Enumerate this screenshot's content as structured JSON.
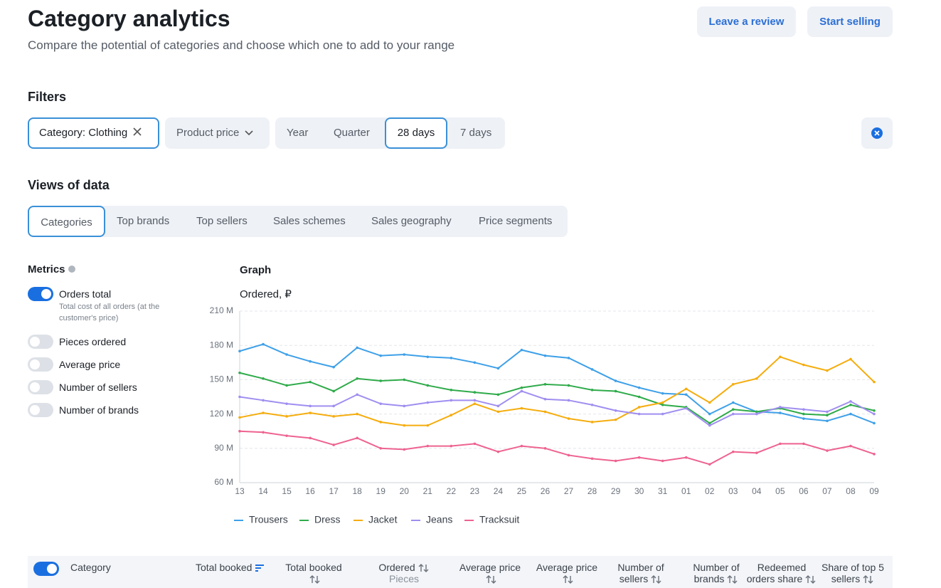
{
  "header": {
    "title": "Category analytics",
    "subtitle": "Compare the potential of categories and choose which one to add to your range",
    "buttons": [
      "Leave a review",
      "Start selling"
    ]
  },
  "filters": {
    "title": "Filters",
    "category": "Category: Clothing",
    "price": "Product price",
    "periods": [
      "Year",
      "Quarter",
      "28 days",
      "7 days"
    ]
  },
  "views": {
    "title": "Views of data",
    "tabs": [
      "Categories",
      "Top brands",
      "Top sellers",
      "Sales schemes",
      "Sales geography",
      "Price segments"
    ]
  },
  "metrics": {
    "title": "Metrics",
    "items": [
      {
        "label": "Orders total",
        "description": "Total cost of all orders (at the customer's price)"
      },
      {
        "label": "Pieces ordered"
      },
      {
        "label": "Average price"
      },
      {
        "label": "Number of sellers"
      },
      {
        "label": "Number of brands"
      }
    ]
  },
  "graph": {
    "title": "Graph"
  },
  "chart_data": {
    "type": "line",
    "y_label": "Ordered, ₽",
    "categories": [
      "13",
      "14",
      "15",
      "16",
      "17",
      "18",
      "19",
      "20",
      "21",
      "22",
      "23",
      "24",
      "25",
      "26",
      "27",
      "28",
      "29",
      "30",
      "31",
      "01",
      "02",
      "03",
      "04",
      "05",
      "06",
      "07",
      "08",
      "09"
    ],
    "series": [
      {
        "name": "Trousers",
        "color": "#3ea0e8",
        "values": [
          175,
          181,
          172,
          166,
          161,
          178,
          171,
          172,
          170,
          169,
          165,
          160,
          176,
          171,
          169,
          159,
          149,
          143,
          138,
          137,
          120,
          130,
          122,
          121,
          116,
          114,
          120,
          112
        ]
      },
      {
        "name": "Dress",
        "color": "#2fab4a",
        "values": [
          156,
          151,
          145,
          148,
          140,
          151,
          149,
          150,
          145,
          141,
          139,
          137,
          143,
          146,
          145,
          141,
          140,
          135,
          128,
          126,
          112,
          124,
          122,
          125,
          120,
          119,
          128,
          123
        ]
      },
      {
        "name": "Jacket",
        "color": "#f5ad0e",
        "values": [
          117,
          121,
          118,
          121,
          118,
          120,
          113,
          110,
          110,
          119,
          129,
          122,
          125,
          122,
          116,
          113,
          115,
          126,
          130,
          142,
          130,
          146,
          151,
          170,
          163,
          158,
          168,
          148
        ]
      },
      {
        "name": "Jeans",
        "color": "#a08ef0",
        "values": [
          135,
          132,
          129,
          127,
          127,
          137,
          129,
          127,
          130,
          132,
          132,
          127,
          140,
          133,
          132,
          128,
          123,
          120,
          120,
          125,
          110,
          120,
          120,
          126,
          124,
          122,
          131,
          120
        ]
      },
      {
        "name": "Tracksuit",
        "color": "#ee6390",
        "values": [
          105,
          104,
          101,
          99,
          93,
          99,
          90,
          89,
          92,
          92,
          94,
          87,
          92,
          90,
          84,
          81,
          79,
          82,
          79,
          82,
          76,
          87,
          86,
          94,
          94,
          88,
          92,
          85
        ]
      }
    ],
    "ylim": [
      60,
      210
    ],
    "yticks": [
      {
        "value": 60,
        "label": "60 M"
      },
      {
        "value": 90,
        "label": "90 M"
      },
      {
        "value": 120,
        "label": "120 M"
      },
      {
        "value": 150,
        "label": "150 M"
      },
      {
        "value": 180,
        "label": "180 M"
      },
      {
        "value": 210,
        "label": "210 M"
      }
    ],
    "grid": true,
    "legend": "bottom"
  },
  "table": {
    "columns": [
      {
        "label": "Category"
      },
      {
        "label": "Total booked"
      },
      {
        "label": "Total booked"
      },
      {
        "label": "Ordered",
        "unit": "Pieces"
      },
      {
        "label": "Average price"
      },
      {
        "label": "Average price"
      },
      {
        "label": "Number of sellers"
      },
      {
        "label": "Number of brands"
      },
      {
        "label": "Redeemed orders share"
      },
      {
        "label": "Share of top 5 sellers"
      }
    ]
  }
}
